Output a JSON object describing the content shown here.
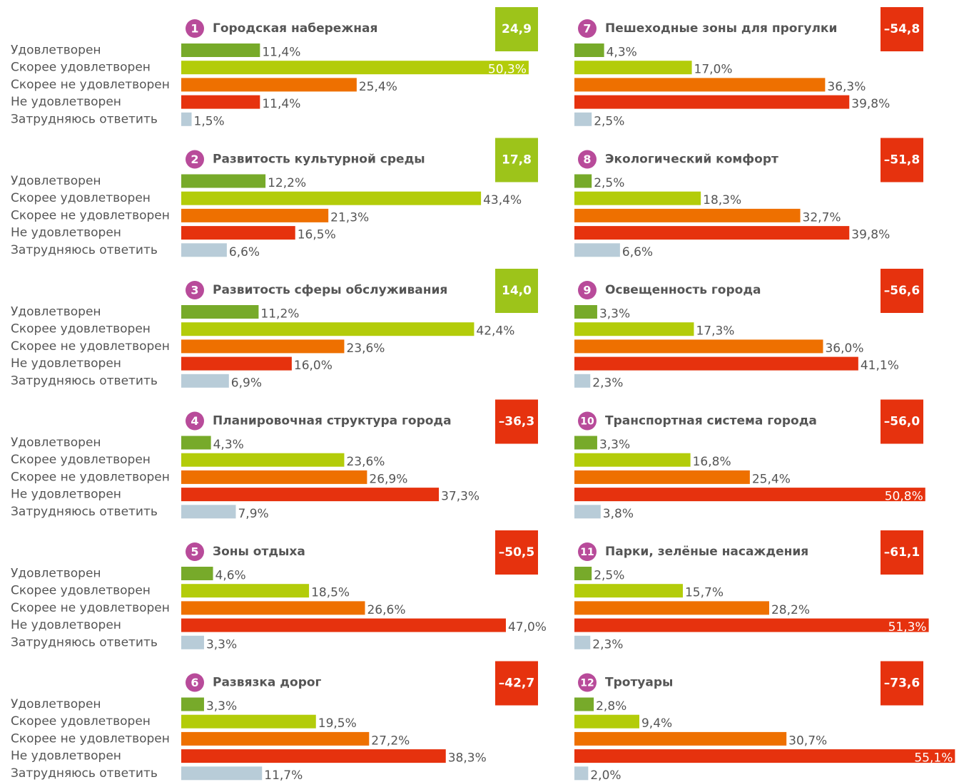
{
  "chart_data": [
    {
      "type": "bar",
      "number": 1,
      "title": "Городская набережная",
      "score": 24.9,
      "score_label": "24,9",
      "score_color": "#9dc41a",
      "categories": [
        "Удовлетворен",
        "Скорее удовлетворен",
        "Скорее не удовлетворен",
        "Не удовлетворен",
        "Затрудняюсь ответить"
      ],
      "values": [
        11.4,
        50.3,
        25.4,
        11.4,
        1.5
      ],
      "value_labels": [
        "11,4%",
        "50,3%",
        "25,4%",
        "11,4%",
        "1,5%"
      ],
      "colors": [
        "#77aa2a",
        "#b3cc0a",
        "#ee7000",
        "#e6320e",
        "#b8ccd8"
      ]
    },
    {
      "type": "bar",
      "number": 2,
      "title": "Развитость культурной среды",
      "score": 17.8,
      "score_label": "17,8",
      "score_color": "#9dc41a",
      "categories": [
        "Удовлетворен",
        "Скорее удовлетворен",
        "Скорее не удовлетворен",
        "Не удовлетворен",
        "Затрудняюсь ответить"
      ],
      "values": [
        12.2,
        43.4,
        21.3,
        16.5,
        6.6
      ],
      "value_labels": [
        "12,2%",
        "43,4%",
        "21,3%",
        "16,5%",
        "6,6%"
      ],
      "colors": [
        "#77aa2a",
        "#b3cc0a",
        "#ee7000",
        "#e6320e",
        "#b8ccd8"
      ]
    },
    {
      "type": "bar",
      "number": 3,
      "title": "Развитость сферы обслуживания",
      "score": 14.0,
      "score_label": "14,0",
      "score_color": "#9dc41a",
      "categories": [
        "Удовлетворен",
        "Скорее удовлетворен",
        "Скорее не удовлетворен",
        "Не удовлетворен",
        "Затрудняюсь ответить"
      ],
      "values": [
        11.2,
        42.4,
        23.6,
        16.0,
        6.9
      ],
      "value_labels": [
        "11,2%",
        "42,4%",
        "23,6%",
        "16,0%",
        "6,9%"
      ],
      "colors": [
        "#77aa2a",
        "#b3cc0a",
        "#ee7000",
        "#e6320e",
        "#b8ccd8"
      ]
    },
    {
      "type": "bar",
      "number": 4,
      "title": "Планировочная структура города",
      "score": -36.3,
      "score_label": "–36,3",
      "score_color": "#e6320e",
      "categories": [
        "Удовлетворен",
        "Скорее удовлетворен",
        "Скорее не удовлетворен",
        "Не удовлетворен",
        "Затрудняюсь ответить"
      ],
      "values": [
        4.3,
        23.6,
        26.9,
        37.3,
        7.9
      ],
      "value_labels": [
        "4,3%",
        "23,6%",
        "26,9%",
        "37,3%",
        "7,9%"
      ],
      "colors": [
        "#77aa2a",
        "#b3cc0a",
        "#ee7000",
        "#e6320e",
        "#b8ccd8"
      ]
    },
    {
      "type": "bar",
      "number": 5,
      "title": "Зоны отдыха",
      "score": -50.5,
      "score_label": "–50,5",
      "score_color": "#e6320e",
      "categories": [
        "Удовлетворен",
        "Скорее удовлетворен",
        "Скорее не удовлетворен",
        "Не удовлетворен",
        "Затрудняюсь ответить"
      ],
      "values": [
        4.6,
        18.5,
        26.6,
        47.0,
        3.3
      ],
      "value_labels": [
        "4,6%",
        "18,5%",
        "26,6%",
        "47,0%",
        "3,3%"
      ],
      "colors": [
        "#77aa2a",
        "#b3cc0a",
        "#ee7000",
        "#e6320e",
        "#b8ccd8"
      ]
    },
    {
      "type": "bar",
      "number": 6,
      "title": "Развязка дорог",
      "score": -42.7,
      "score_label": "–42,7",
      "score_color": "#e6320e",
      "categories": [
        "Удовлетворен",
        "Скорее удовлетворен",
        "Скорее не удовлетворен",
        "Не удовлетворен",
        "Затрудняюсь ответить"
      ],
      "values": [
        3.3,
        19.5,
        27.2,
        38.3,
        11.7
      ],
      "value_labels": [
        "3,3%",
        "19,5%",
        "27,2%",
        "38,3%",
        "11,7%"
      ],
      "colors": [
        "#77aa2a",
        "#b3cc0a",
        "#ee7000",
        "#e6320e",
        "#b8ccd8"
      ]
    },
    {
      "type": "bar",
      "number": 7,
      "title": "Пешеходные зоны для прогулки",
      "score": -54.8,
      "score_label": "–54,8",
      "score_color": "#e6320e",
      "values": [
        4.3,
        17.0,
        36.3,
        39.8,
        2.5
      ],
      "value_labels": [
        "4,3%",
        "17,0%",
        "36,3%",
        "39,8%",
        "2,5%"
      ],
      "colors": [
        "#77aa2a",
        "#b3cc0a",
        "#ee7000",
        "#e6320e",
        "#b8ccd8"
      ]
    },
    {
      "type": "bar",
      "number": 8,
      "title": "Экологический комфорт",
      "score": -51.8,
      "score_label": "–51,8",
      "score_color": "#e6320e",
      "values": [
        2.5,
        18.3,
        32.7,
        39.8,
        6.6
      ],
      "value_labels": [
        "2,5%",
        "18,3%",
        "32,7%",
        "39,8%",
        "6,6%"
      ],
      "colors": [
        "#77aa2a",
        "#b3cc0a",
        "#ee7000",
        "#e6320e",
        "#b8ccd8"
      ]
    },
    {
      "type": "bar",
      "number": 9,
      "title": "Освещенность города",
      "score": -56.6,
      "score_label": "–56,6",
      "score_color": "#e6320e",
      "values": [
        3.3,
        17.3,
        36.0,
        41.1,
        2.3
      ],
      "value_labels": [
        "3,3%",
        "17,3%",
        "36,0%",
        "41,1%",
        "2,3%"
      ],
      "colors": [
        "#77aa2a",
        "#b3cc0a",
        "#ee7000",
        "#e6320e",
        "#b8ccd8"
      ]
    },
    {
      "type": "bar",
      "number": 10,
      "title": "Транспортная система города",
      "score": -56.0,
      "score_label": "–56,0",
      "score_color": "#e6320e",
      "values": [
        3.3,
        16.8,
        25.4,
        50.8,
        3.8
      ],
      "value_labels": [
        "3,3%",
        "16,8%",
        "25,4%",
        "50,8%",
        "3,8%"
      ],
      "colors": [
        "#77aa2a",
        "#b3cc0a",
        "#ee7000",
        "#e6320e",
        "#b8ccd8"
      ]
    },
    {
      "type": "bar",
      "number": 11,
      "title": "Парки, зелёные насаждения",
      "score": -61.1,
      "score_label": "–61,1",
      "score_color": "#e6320e",
      "values": [
        2.5,
        15.7,
        28.2,
        51.3,
        2.3
      ],
      "value_labels": [
        "2,5%",
        "15,7%",
        "28,2%",
        "51,3%",
        "2,3%"
      ],
      "colors": [
        "#77aa2a",
        "#b3cc0a",
        "#ee7000",
        "#e6320e",
        "#b8ccd8"
      ]
    },
    {
      "type": "bar",
      "number": 12,
      "title": "Тротуары",
      "score": -73.6,
      "score_label": "–73,6",
      "score_color": "#e6320e",
      "values": [
        2.8,
        9.4,
        30.7,
        55.1,
        2.0
      ],
      "value_labels": [
        "2,8%",
        "9,4%",
        "30,7%",
        "55,1%",
        "2,0%"
      ],
      "colors": [
        "#77aa2a",
        "#b3cc0a",
        "#ee7000",
        "#e6320e",
        "#b8ccd8"
      ]
    }
  ]
}
